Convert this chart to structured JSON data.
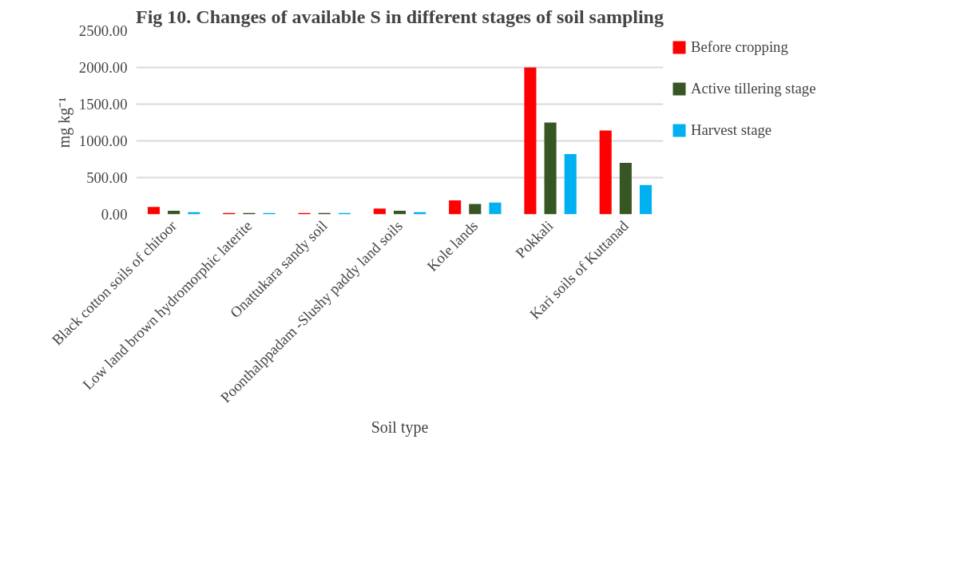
{
  "chart_data": {
    "type": "bar",
    "title": "Fig 10. Changes of available S in different stages of soil sampling",
    "xlabel": "Soil type",
    "ylabel": "mg kg⁻¹",
    "categories": [
      "Black cotton soils of chitoor",
      "Low land brown hydromorphic laterite",
      "Onattukara sandy soil",
      "Poonthalppadam -Slushy paddy land soils",
      "Kole lands",
      "Pokkali",
      "Kari soils of Kuttanad"
    ],
    "series": [
      {
        "name": "Before cropping",
        "color": "#ff0000",
        "values": [
          100,
          20,
          20,
          80,
          190,
          2000,
          1140
        ]
      },
      {
        "name": "Active tillering stage",
        "color": "#375623",
        "values": [
          50,
          20,
          20,
          50,
          140,
          1250,
          700
        ]
      },
      {
        "name": "Harvest stage",
        "color": "#00b0f0",
        "values": [
          30,
          20,
          20,
          30,
          160,
          820,
          400
        ]
      }
    ],
    "ylim": [
      0,
      2500
    ],
    "yticks": [
      {
        "value": 0,
        "label": "0.00"
      },
      {
        "value": 500,
        "label": "500.00"
      },
      {
        "value": 1000,
        "label": "1000.00"
      },
      {
        "value": 1500,
        "label": "1500.00"
      },
      {
        "value": 2000,
        "label": "2000.00"
      },
      {
        "value": 2500,
        "label": "2500.00"
      }
    ],
    "grid": "y",
    "legend": "right"
  }
}
